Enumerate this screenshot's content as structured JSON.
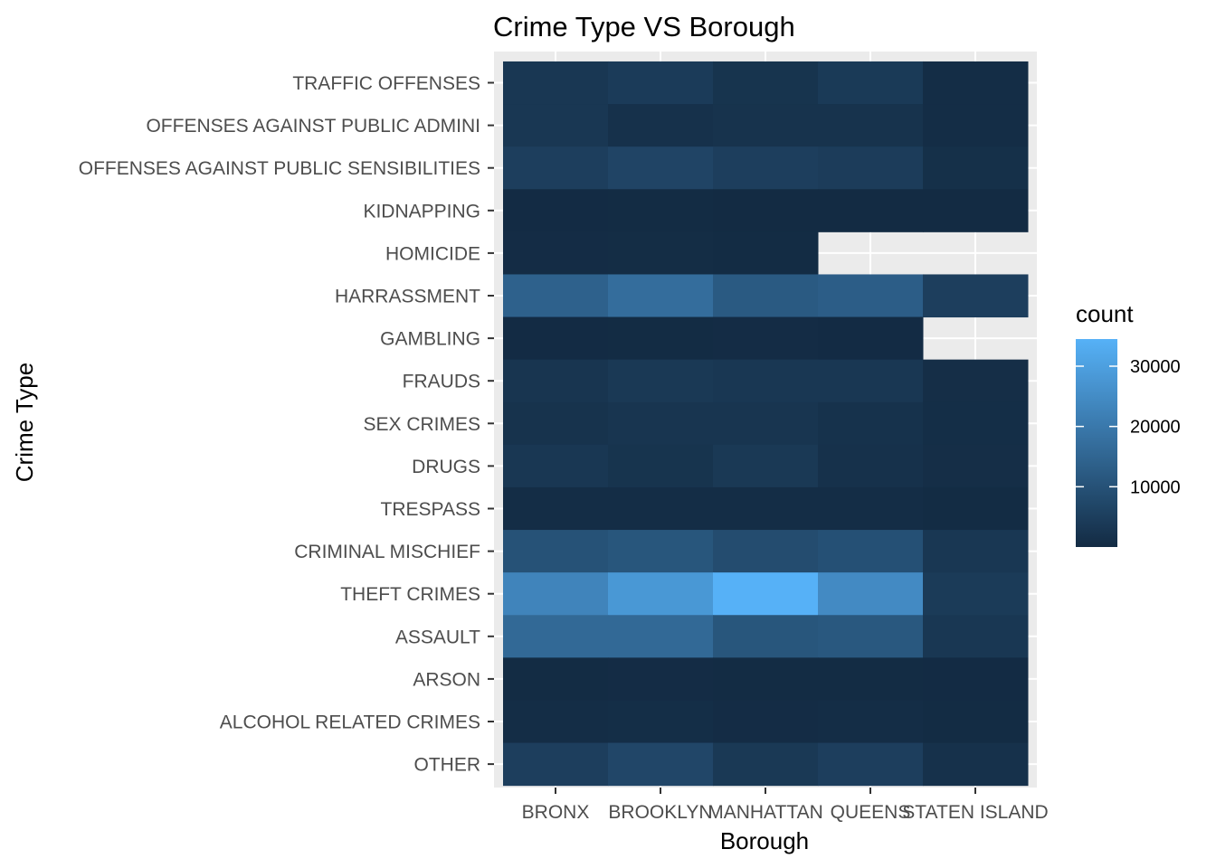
{
  "chart_data": {
    "type": "heatmap",
    "title": "Crime Type VS Borough",
    "xlabel": "Borough",
    "ylabel": "Crime Type",
    "x_categories": [
      "BRONX",
      "BROOKLYN",
      "MANHATTAN",
      "QUEENS",
      "STATEN ISLAND"
    ],
    "y_categories": [
      "TRAFFIC OFFENSES",
      "OFFENSES AGAINST PUBLIC ADMINI",
      "OFFENSES AGAINST PUBLIC SENSIBILITIES",
      "KIDNAPPING",
      "HOMICIDE",
      "HARRASSMENT",
      "GAMBLING",
      "FRAUDS",
      "SEX CRIMES",
      "DRUGS",
      "TRESPASS",
      "CRIMINAL MISCHIEF",
      "THEFT CRIMES",
      "ASSAULT",
      "ARSON",
      "ALCOHOL RELATED CRIMES",
      "OTHER"
    ],
    "values": [
      [
        3000,
        4200,
        2200,
        3800,
        500
      ],
      [
        3000,
        1500,
        2000,
        2000,
        600
      ],
      [
        5000,
        6500,
        5000,
        4500,
        1200
      ],
      [
        100,
        150,
        80,
        90,
        20
      ],
      [
        300,
        400,
        200,
        null,
        null
      ],
      [
        14000,
        17000,
        12000,
        13000,
        5000
      ],
      [
        100,
        200,
        300,
        100,
        null
      ],
      [
        2500,
        3500,
        3000,
        3000,
        800
      ],
      [
        2000,
        2500,
        2500,
        1800,
        700
      ],
      [
        3000,
        2200,
        3500,
        1500,
        800
      ],
      [
        500,
        600,
        600,
        500,
        200
      ],
      [
        10000,
        11000,
        8500,
        9500,
        3000
      ],
      [
        23000,
        28000,
        34500,
        24500,
        4000
      ],
      [
        16000,
        16000,
        11000,
        11500,
        3000
      ],
      [
        200,
        300,
        150,
        250,
        100
      ],
      [
        500,
        700,
        300,
        600,
        150
      ],
      [
        5000,
        7000,
        3500,
        5000,
        1500
      ]
    ],
    "color_scale": {
      "low": "#132b43",
      "high": "#56b1f7",
      "min": 0,
      "max": 34500,
      "missing": "#ebebeb"
    },
    "legend": {
      "title": "count",
      "ticks": [
        10000,
        20000,
        30000
      ],
      "position": "right"
    },
    "grid": true,
    "panel_background": "#ebebeb"
  }
}
